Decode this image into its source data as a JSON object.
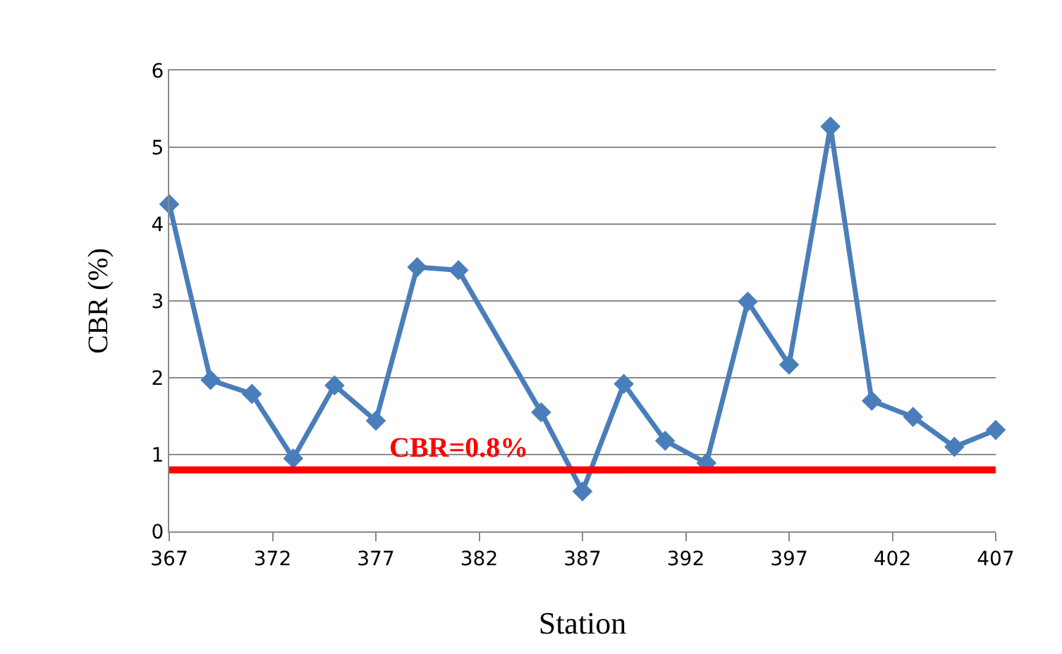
{
  "chart_data": {
    "type": "line",
    "xlabel": "Station",
    "ylabel": "CBR (%)",
    "x": [
      367,
      369,
      371,
      373,
      375,
      377,
      379,
      381,
      385,
      387,
      389,
      391,
      393,
      395,
      397,
      399,
      401,
      403,
      405,
      407
    ],
    "series": [
      {
        "color": "#4a7ebb",
        "values": [
          4.26,
          1.97,
          1.79,
          0.95,
          1.9,
          1.44,
          3.44,
          3.4,
          1.55,
          0.52,
          1.92,
          1.18,
          0.89,
          2.99,
          2.17,
          5.27,
          1.7,
          1.49,
          1.1,
          1.32
        ]
      }
    ],
    "xlim": [
      367,
      407
    ],
    "xticks": [
      367,
      372,
      377,
      382,
      387,
      392,
      397,
      402,
      407
    ],
    "ylim": [
      0,
      6
    ],
    "yticks": [
      0,
      1,
      2,
      3,
      4,
      5,
      6
    ],
    "ref_lines": [
      {
        "axis": "y",
        "value": 0.8,
        "label": "CBR=0.8%",
        "color": "#ff0000"
      }
    ],
    "grid": "y",
    "marker": "diamond",
    "line_style": "solid"
  }
}
